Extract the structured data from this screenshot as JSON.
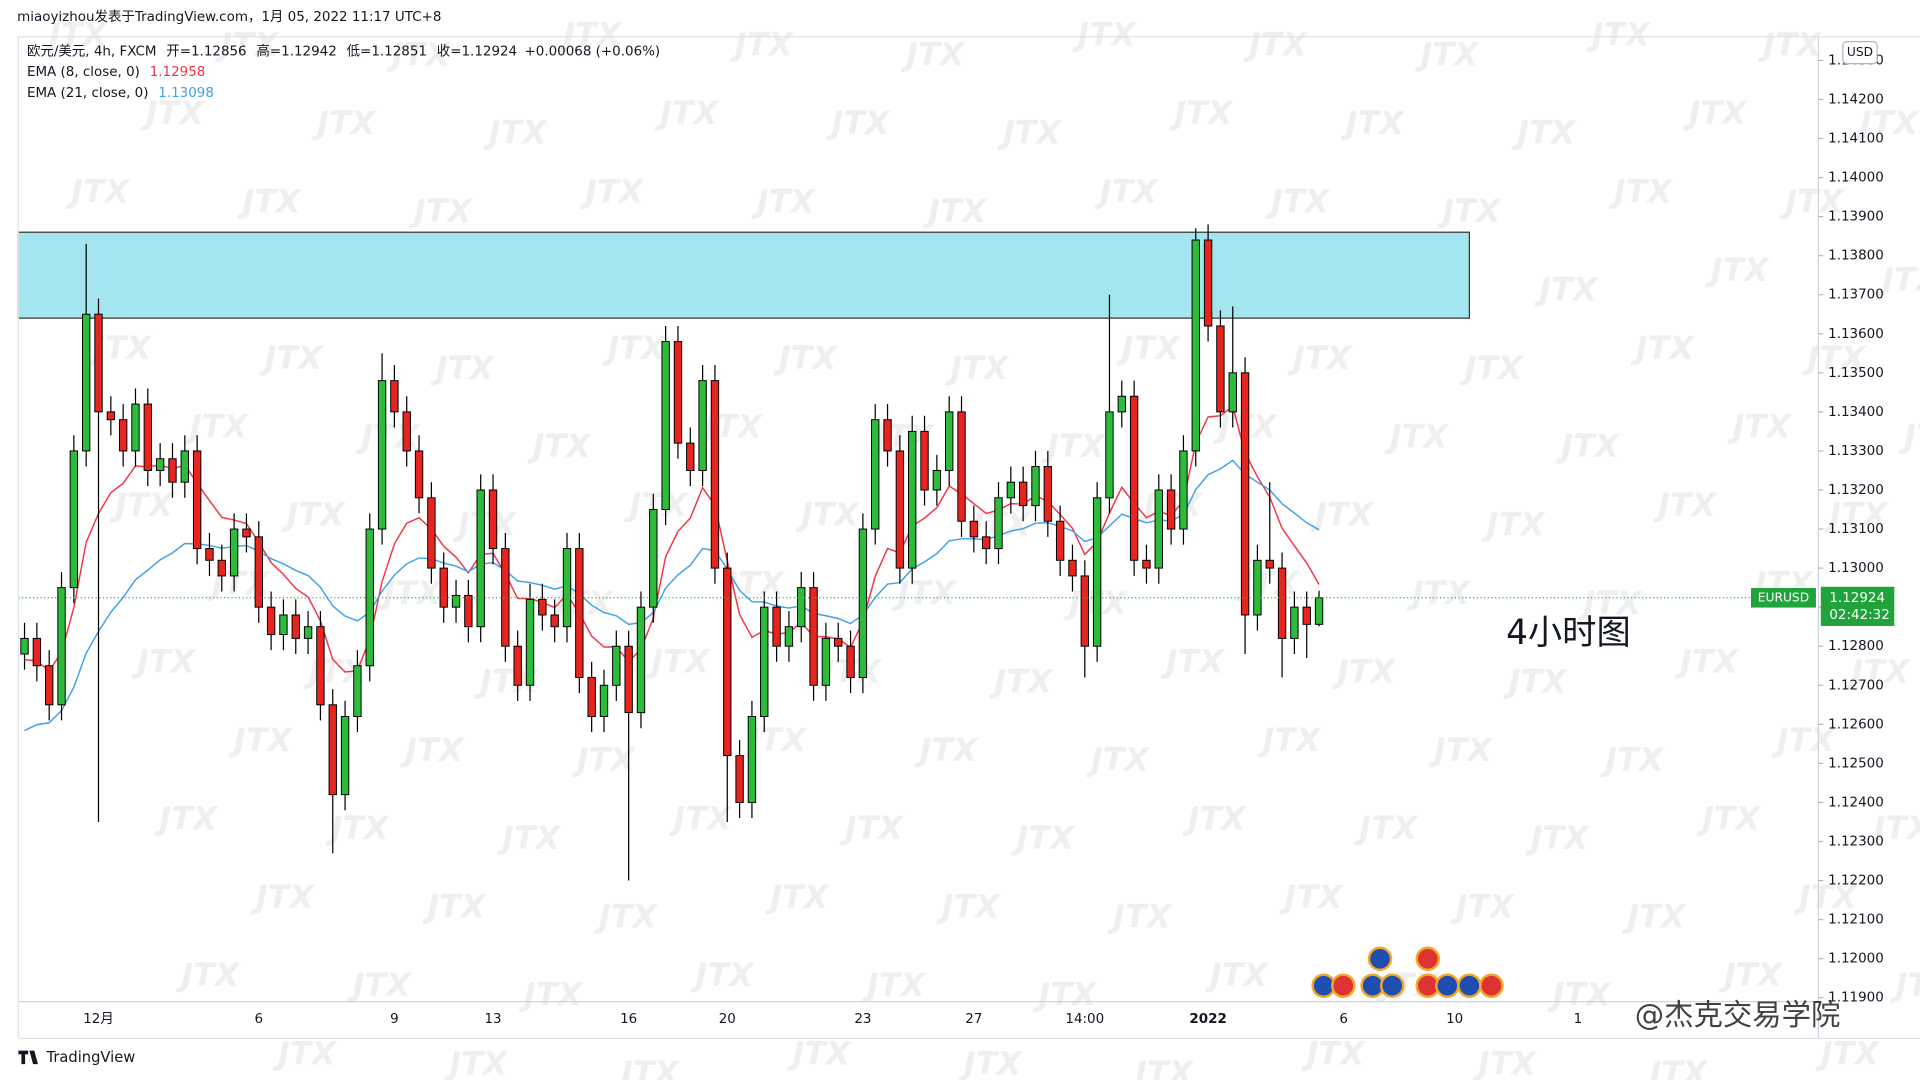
{
  "chart_data": {
    "type": "candlestick",
    "header": "miaoyizhou发表于TradingView.com，1月 05, 2022 11:17 UTC+8",
    "symbol": "欧元/美元, 4h, FXCM",
    "ohlc_labels": [
      "开=",
      "高=",
      "低=",
      "收="
    ],
    "change": "+0.00068 (+0.06%)",
    "currency": "USD",
    "ticker": "EURUSD",
    "countdown": "02:42:32",
    "annotation": "4小时图",
    "watermark": "JTX",
    "credit": "@杰克交易学院",
    "brand": "TradingView",
    "up_color": "#2dbb3a",
    "down_color": "#e8241f",
    "grid": false,
    "zone": {
      "low": 1.1364,
      "high": 1.1386,
      "color": "#a3e6ef"
    },
    "ylim": [
      1.1189,
      1.143
    ],
    "yticks": [
      {
        "value": 1.119,
        "label": "1.11900"
      },
      {
        "value": 1.12,
        "label": "1.12000"
      },
      {
        "value": 1.121,
        "label": "1.12100"
      },
      {
        "value": 1.122,
        "label": "1.12200"
      },
      {
        "value": 1.123,
        "label": "1.12300"
      },
      {
        "value": 1.124,
        "label": "1.12400"
      },
      {
        "value": 1.125,
        "label": "1.12500"
      },
      {
        "value": 1.126,
        "label": "1.12600"
      },
      {
        "value": 1.127,
        "label": "1.12700"
      },
      {
        "value": 1.128,
        "label": "1.12800"
      },
      {
        "value": 1.129,
        "label": "1.12900"
      },
      {
        "value": 1.13,
        "label": "1.13000"
      },
      {
        "value": 1.131,
        "label": "1.13100"
      },
      {
        "value": 1.132,
        "label": "1.13200"
      },
      {
        "value": 1.133,
        "label": "1.13300"
      },
      {
        "value": 1.134,
        "label": "1.13400"
      },
      {
        "value": 1.135,
        "label": "1.13500"
      },
      {
        "value": 1.136,
        "label": "1.13600"
      },
      {
        "value": 1.137,
        "label": "1.13700"
      },
      {
        "value": 1.138,
        "label": "1.13800"
      },
      {
        "value": 1.139,
        "label": "1.13900"
      },
      {
        "value": 1.14,
        "label": "1.14000"
      },
      {
        "value": 1.141,
        "label": "1.14100"
      },
      {
        "value": 1.142,
        "label": "1.14200"
      },
      {
        "value": 1.143,
        "label": "1.14300"
      }
    ],
    "categories": [
      null,
      null,
      null,
      null,
      null,
      null,
      "12月",
      null,
      null,
      null,
      null,
      null,
      null,
      null,
      null,
      null,
      null,
      null,
      null,
      "6",
      null,
      null,
      null,
      null,
      null,
      null,
      null,
      null,
      null,
      null,
      "9",
      null,
      null,
      null,
      null,
      null,
      null,
      null,
      "13",
      null,
      null,
      null,
      null,
      null,
      null,
      null,
      null,
      null,
      null,
      "16",
      null,
      null,
      null,
      null,
      null,
      null,
      null,
      "20",
      null,
      null,
      null,
      null,
      null,
      null,
      null,
      null,
      null,
      null,
      "23",
      null,
      null,
      null,
      null,
      null,
      null,
      null,
      null,
      "27",
      null,
      null,
      null,
      null,
      null,
      null,
      null,
      null,
      "14:00",
      null,
      null,
      null,
      null,
      null,
      null,
      null,
      null,
      null,
      "2022",
      null,
      null,
      null,
      null,
      null,
      null,
      null,
      null,
      null,
      null,
      "6",
      null,
      null,
      null,
      null,
      null,
      null,
      null,
      null,
      "10",
      null,
      null,
      null,
      null,
      null,
      null,
      null,
      null,
      null,
      "1",
      null,
      null,
      null,
      null,
      null,
      null,
      null,
      null,
      null,
      null,
      null,
      null,
      null,
      null,
      null,
      null,
      null,
      null,
      null
    ],
    "open": [
      1.1278,
      1.1282,
      1.1275,
      1.1265,
      1.1295,
      1.133,
      1.1365,
      1.134,
      1.1338,
      1.133,
      1.1342,
      1.1325,
      1.1328,
      1.1322,
      1.133,
      1.1305,
      1.1302,
      1.1298,
      1.131,
      1.1308,
      1.129,
      1.1283,
      1.1288,
      1.1282,
      1.1285,
      1.1265,
      1.1242,
      1.1262,
      1.1275,
      1.131,
      1.1348,
      1.134,
      1.133,
      1.1318,
      1.13,
      1.129,
      1.1293,
      1.1285,
      1.132,
      1.1305,
      1.128,
      1.127,
      1.1292,
      1.1288,
      1.1285,
      1.1305,
      1.1272,
      1.1262,
      1.127,
      1.128,
      1.1263,
      1.129,
      1.1315,
      1.1358,
      1.1332,
      1.1325,
      1.1348,
      1.13,
      1.1252,
      1.124,
      1.1262,
      1.129,
      1.128,
      1.1285,
      1.1295,
      1.127,
      1.1282,
      1.128,
      1.1272,
      1.131,
      1.1338,
      1.133,
      1.13,
      1.1335,
      1.132,
      1.1325,
      1.134,
      1.1312,
      1.1308,
      1.1305,
      1.1318,
      1.1322,
      1.1316,
      1.1326,
      1.1312,
      1.1302,
      1.1298,
      1.128,
      1.1318,
      1.134,
      1.1344,
      1.1302,
      1.13,
      1.132,
      1.131,
      1.133,
      1.1384,
      1.1362,
      1.134,
      1.135,
      1.1288,
      1.1302,
      1.13,
      1.1282,
      1.129,
      1.12856,
      null,
      null,
      null,
      null,
      null,
      null,
      null,
      null,
      null,
      null,
      null,
      null,
      null,
      null,
      null,
      null,
      null,
      null,
      null,
      null,
      null,
      null,
      null,
      null,
      null,
      null,
      null,
      null,
      null,
      null,
      null,
      null,
      null,
      null,
      null,
      null,
      null,
      null,
      null,
      null
    ],
    "high": [
      1.1286,
      1.1286,
      1.1279,
      1.1299,
      1.1334,
      1.1383,
      1.1369,
      1.1344,
      1.1342,
      1.1346,
      1.1346,
      1.1332,
      1.1332,
      1.1334,
      1.1334,
      1.1309,
      1.1306,
      1.1314,
      1.1314,
      1.1312,
      1.1294,
      1.1292,
      1.1292,
      1.1289,
      1.1289,
      1.1269,
      1.1266,
      1.1279,
      1.1314,
      1.1355,
      1.1352,
      1.1344,
      1.1334,
      1.1322,
      1.1304,
      1.1297,
      1.1297,
      1.1324,
      1.1324,
      1.1309,
      1.1284,
      1.1296,
      1.1296,
      1.1292,
      1.1309,
      1.1309,
      1.1276,
      1.1274,
      1.1284,
      1.1284,
      1.1294,
      1.1319,
      1.1362,
      1.1362,
      1.1336,
      1.1352,
      1.1352,
      1.1304,
      1.1256,
      1.1266,
      1.1294,
      1.1294,
      1.1289,
      1.1299,
      1.1299,
      1.1286,
      1.1286,
      1.1284,
      1.1314,
      1.1342,
      1.1342,
      1.1334,
      1.1339,
      1.1339,
      1.1329,
      1.1344,
      1.1344,
      1.1316,
      1.1312,
      1.1322,
      1.1326,
      1.1326,
      1.133,
      1.133,
      1.1316,
      1.1306,
      1.1302,
      1.1322,
      1.137,
      1.1348,
      1.1348,
      1.1306,
      1.1324,
      1.1324,
      1.1334,
      1.1387,
      1.1388,
      1.1366,
      1.1367,
      1.1354,
      1.1306,
      1.1322,
      1.1304,
      1.1294,
      1.1294,
      1.12942,
      null,
      null,
      null,
      null,
      null,
      null,
      null,
      null,
      null,
      null,
      null,
      null,
      null,
      null,
      null,
      null,
      null,
      null,
      null,
      null,
      null,
      null,
      null,
      null,
      null,
      null,
      null,
      null,
      null,
      null,
      null,
      null,
      null,
      null,
      null,
      null,
      null,
      null,
      null,
      null
    ],
    "low": [
      1.1274,
      1.1271,
      1.1261,
      1.1261,
      1.1291,
      1.1326,
      1.1235,
      1.1334,
      1.1326,
      1.1326,
      1.1321,
      1.1321,
      1.1318,
      1.1318,
      1.1301,
      1.1298,
      1.1294,
      1.1294,
      1.1304,
      1.1286,
      1.1279,
      1.1279,
      1.1278,
      1.1278,
      1.1261,
      1.1227,
      1.1238,
      1.1258,
      1.1271,
      1.1306,
      1.1336,
      1.1326,
      1.1314,
      1.1296,
      1.1286,
      1.1286,
      1.1281,
      1.1281,
      1.1301,
      1.1276,
      1.1266,
      1.1266,
      1.1284,
      1.1281,
      1.1281,
      1.1268,
      1.1258,
      1.1258,
      1.1266,
      1.122,
      1.1259,
      1.1286,
      1.1311,
      1.1328,
      1.1321,
      1.1321,
      1.1296,
      1.1235,
      1.1236,
      1.1236,
      1.1258,
      1.1276,
      1.1276,
      1.1281,
      1.1266,
      1.1266,
      1.1276,
      1.1268,
      1.1268,
      1.1306,
      1.1326,
      1.1296,
      1.1296,
      1.1316,
      1.1316,
      1.1321,
      1.1308,
      1.1304,
      1.1301,
      1.1301,
      1.1314,
      1.1312,
      1.1312,
      1.1308,
      1.1298,
      1.1294,
      1.1272,
      1.1276,
      1.1314,
      1.1336,
      1.1298,
      1.1296,
      1.1296,
      1.1306,
      1.1306,
      1.1326,
      1.1358,
      1.1336,
      1.1336,
      1.1278,
      1.1284,
      1.1296,
      1.1272,
      1.1278,
      1.1277,
      1.12851,
      null,
      null,
      null,
      null,
      null,
      null,
      null,
      null,
      null,
      null,
      null,
      null,
      null,
      null,
      null,
      null,
      null,
      null,
      null,
      null,
      null,
      null,
      null,
      null,
      null,
      null,
      null,
      null,
      null,
      null,
      null,
      null,
      null,
      null,
      null,
      null,
      null,
      null,
      null,
      null
    ],
    "close": [
      1.1282,
      1.1275,
      1.1265,
      1.1295,
      1.133,
      1.1365,
      1.134,
      1.1338,
      1.133,
      1.1342,
      1.1325,
      1.1328,
      1.1322,
      1.133,
      1.1305,
      1.1302,
      1.1298,
      1.131,
      1.1308,
      1.129,
      1.1283,
      1.1288,
      1.1282,
      1.1285,
      1.1265,
      1.1242,
      1.1262,
      1.1275,
      1.131,
      1.1348,
      1.134,
      1.133,
      1.1318,
      1.13,
      1.129,
      1.1293,
      1.1285,
      1.132,
      1.1305,
      1.128,
      1.127,
      1.1292,
      1.1288,
      1.1285,
      1.1305,
      1.1272,
      1.1262,
      1.127,
      1.128,
      1.1263,
      1.129,
      1.1315,
      1.1358,
      1.1332,
      1.1325,
      1.1348,
      1.13,
      1.1252,
      1.124,
      1.1262,
      1.129,
      1.128,
      1.1285,
      1.1295,
      1.127,
      1.1282,
      1.128,
      1.1272,
      1.131,
      1.1338,
      1.133,
      1.13,
      1.1335,
      1.132,
      1.1325,
      1.134,
      1.1312,
      1.1308,
      1.1305,
      1.1318,
      1.1322,
      1.1316,
      1.1326,
      1.1312,
      1.1302,
      1.1298,
      1.128,
      1.1318,
      1.134,
      1.1344,
      1.1302,
      1.13,
      1.132,
      1.131,
      1.133,
      1.1384,
      1.1362,
      1.134,
      1.135,
      1.1288,
      1.1302,
      1.13,
      1.1282,
      1.129,
      1.12856,
      1.12924,
      null,
      null,
      null,
      null,
      null,
      null,
      null,
      null,
      null,
      null,
      null,
      null,
      null,
      null,
      null,
      null,
      null,
      null,
      null,
      null,
      null,
      null,
      null,
      null,
      null,
      null,
      null,
      null,
      null,
      null,
      null,
      null,
      null,
      null,
      null,
      null,
      null,
      null,
      null,
      null
    ],
    "series": [
      {
        "name": "EMA (8, close, 0)",
        "color": "#f23645",
        "values": [
          1.12766,
          1.12762,
          1.12737,
          1.12784,
          1.12899,
          1.13066,
          1.1314,
          1.13193,
          1.13217,
          1.13262,
          1.13259,
          1.13264,
          1.13254,
          1.13264,
          1.13217,
          1.13173,
          1.1313,
          1.13123,
          1.13114,
          1.13066,
          1.13014,
          1.12984,
          1.12948,
          1.12926,
          1.12865,
          1.12766,
          1.12734,
          1.12737,
          1.12818,
          1.12965,
          1.13062,
          1.13115,
          1.13129,
          1.131,
          1.13056,
          1.13028,
          1.12988,
          1.13035,
          1.13038,
          1.12985,
          1.12922,
          1.12922,
          1.12912,
          1.12899,
          1.12932,
          1.12885,
          1.12826,
          1.12798,
          1.12798,
          1.12761,
          1.12792,
          1.12872,
          1.13029,
          1.13094,
          1.13128,
          1.13206,
          1.1316,
          1.13018,
          1.12881,
          1.12823,
          1.1284,
          1.12831,
          1.12835,
          1.12861,
          1.12825,
          1.12824,
          1.12819,
          1.12797,
          1.12864,
          1.12979,
          1.1305,
          1.13039,
          1.13108,
          1.13128,
          1.13155,
          1.1321,
          1.1319,
          1.13165,
          1.1314,
          1.13149,
          1.13165,
          1.13164,
          1.13185,
          1.13171,
          1.13137,
          1.13102,
          1.13035,
          1.13067,
          1.13141,
          1.13207,
          1.13166,
          1.13129,
          1.13145,
          1.13135,
          1.13172,
          1.1332,
          1.13387,
          1.1339,
          1.13414,
          1.13295,
          1.13234,
          1.13182,
          1.13102,
          1.13057,
          1.13013,
          1.12958,
          null,
          null,
          null,
          null,
          null,
          null,
          null,
          null,
          null,
          null,
          null,
          null,
          null,
          null,
          null,
          null,
          null,
          null,
          null,
          null,
          null,
          null,
          null,
          null,
          null,
          null,
          null,
          null,
          null,
          null,
          null,
          null,
          null,
          null,
          null,
          null,
          null,
          null,
          null,
          null
        ]
      },
      {
        "name": "EMA (21, close, 0)",
        "color": "#3fa2ea",
        "values": [
          1.12584,
          1.12599,
          1.12604,
          1.12635,
          1.12695,
          1.12782,
          1.12838,
          1.12887,
          1.12925,
          1.1297,
          1.12995,
          1.13021,
          1.13039,
          1.13063,
          1.13062,
          1.13058,
          1.13051,
          1.13055,
          1.13058,
          1.13043,
          1.13024,
          1.13011,
          1.12994,
          1.12981,
          1.12951,
          1.12903,
          1.12877,
          1.12865,
          1.12887,
          1.12941,
          1.12982,
          1.13011,
          1.13026,
          1.13024,
          1.13013,
          1.13005,
          1.12991,
          1.1301,
          1.13014,
          1.12994,
          1.12967,
          1.12963,
          1.12956,
          1.12946,
          1.12955,
          1.12934,
          1.12905,
          1.12886,
          1.12878,
          1.12856,
          1.1286,
          1.12886,
          1.12949,
          1.12983,
          1.13007,
          1.1305,
          1.13045,
          1.12997,
          1.12943,
          1.12914,
          1.12913,
          1.12903,
          1.12898,
          1.12903,
          1.12884,
          1.12878,
          1.12871,
          1.12858,
          1.1288,
          1.12925,
          1.12959,
          1.12963,
          1.12998,
          1.13016,
          1.13037,
          1.1307,
          1.13075,
          1.13075,
          1.13073,
          1.13083,
          1.13095,
          1.13101,
          1.13115,
          1.13116,
          1.13107,
          1.13095,
          1.13068,
          1.13078,
          1.13108,
          1.13138,
          1.13127,
          1.13116,
          1.13123,
          1.13121,
          1.13137,
          1.13201,
          1.13239,
          1.13254,
          1.13276,
          1.1324,
          1.1322,
          1.132,
          1.13165,
          1.13141,
          1.13116,
          1.13098,
          null,
          null,
          null,
          null,
          null,
          null,
          null,
          null,
          null,
          null,
          null,
          null,
          null,
          null,
          null,
          null,
          null,
          null,
          null,
          null,
          null,
          null,
          null,
          null,
          null,
          null,
          null,
          null,
          null,
          null,
          null,
          null,
          null,
          null,
          null,
          null,
          null,
          null,
          null,
          null
        ]
      }
    ]
  }
}
